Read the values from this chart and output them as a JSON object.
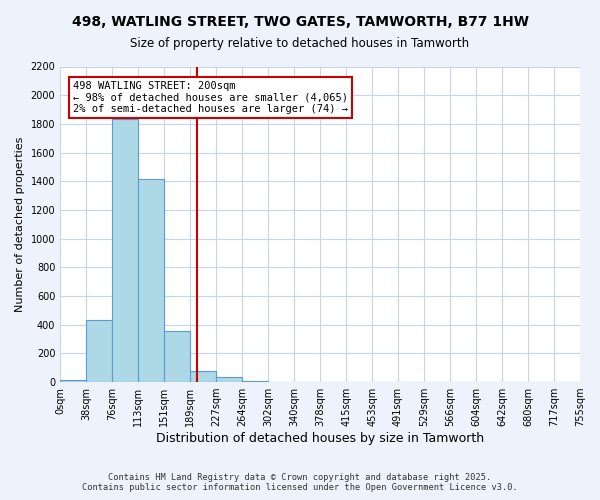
{
  "title": "498, WATLING STREET, TWO GATES, TAMWORTH, B77 1HW",
  "subtitle": "Size of property relative to detached houses in Tamworth",
  "xlabel": "Distribution of detached houses by size in Tamworth",
  "ylabel": "Number of detached properties",
  "bin_labels": [
    "0sqm",
    "38sqm",
    "76sqm",
    "113sqm",
    "151sqm",
    "189sqm",
    "227sqm",
    "264sqm",
    "302sqm",
    "340sqm",
    "378sqm",
    "415sqm",
    "453sqm",
    "491sqm",
    "529sqm",
    "566sqm",
    "604sqm",
    "642sqm",
    "680sqm",
    "717sqm",
    "755sqm"
  ],
  "bar_values": [
    15,
    435,
    1835,
    1415,
    355,
    80,
    35,
    5,
    0,
    0,
    0,
    0,
    0,
    0,
    0,
    0,
    0,
    0,
    0,
    0
  ],
  "bar_color": "#add8e6",
  "bar_edge_color": "#5b9bd5",
  "vline_x": 5.26,
  "vline_color": "#cc0000",
  "annotation_text": "498 WATLING STREET: 200sqm\n← 98% of detached houses are smaller (4,065)\n2% of semi-detached houses are larger (74) →",
  "annotation_box_color": "#ffffff",
  "annotation_box_edge": "#cc0000",
  "ylim": [
    0,
    2200
  ],
  "yticks": [
    0,
    200,
    400,
    600,
    800,
    1000,
    1200,
    1400,
    1600,
    1800,
    2000,
    2200
  ],
  "footer_line1": "Contains HM Land Registry data © Crown copyright and database right 2025.",
  "footer_line2": "Contains public sector information licensed under the Open Government Licence v3.0.",
  "bg_color": "#eef2fb",
  "plot_bg_color": "#ffffff",
  "grid_color": "#c8d4e8"
}
